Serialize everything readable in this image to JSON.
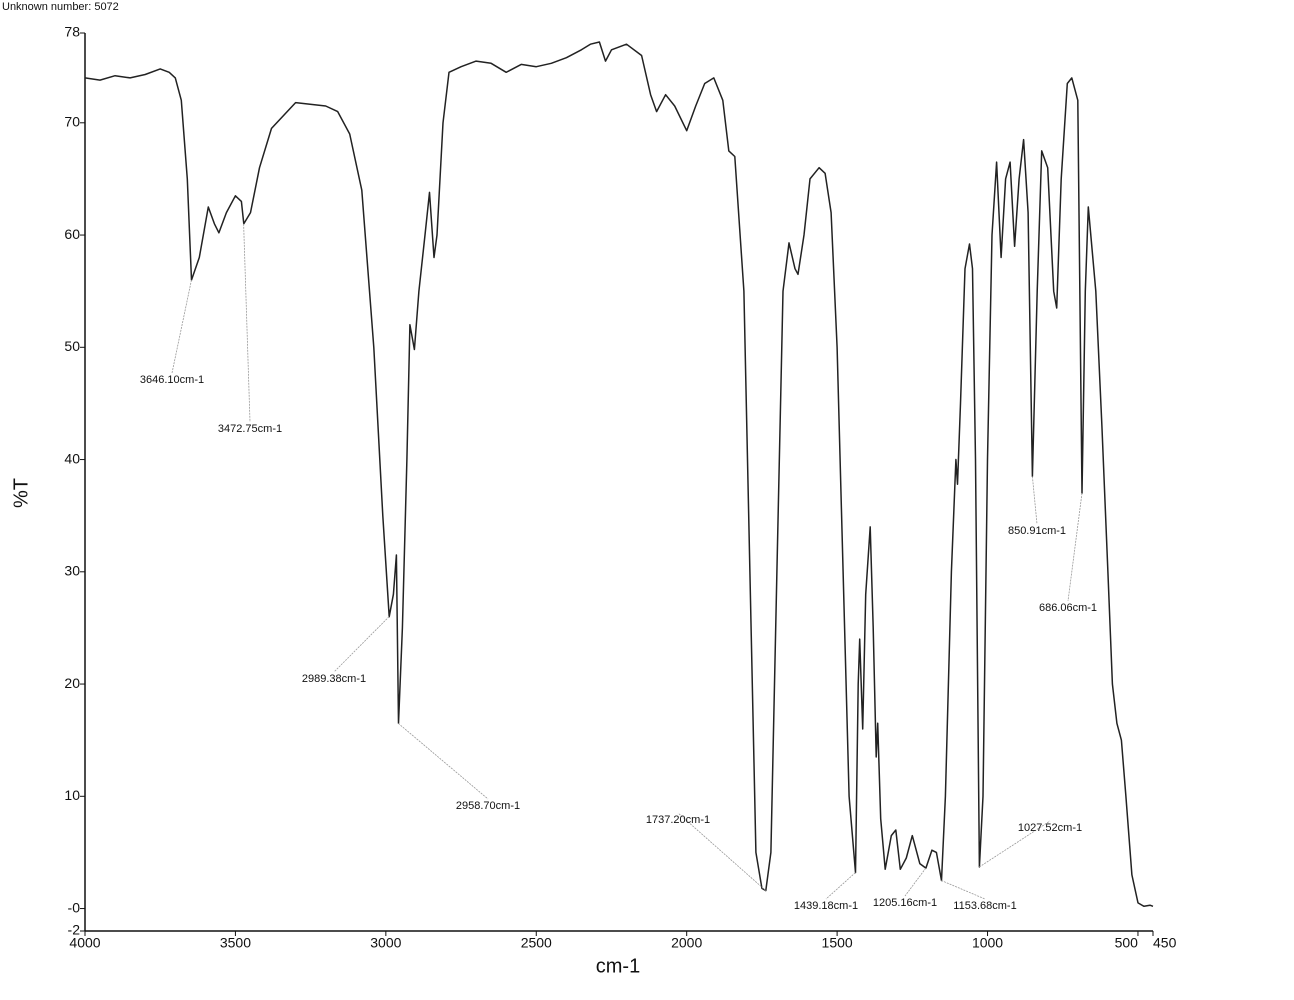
{
  "chart_data": {
    "type": "line",
    "title": "Unknown number: 5072",
    "xlabel": "cm-1",
    "ylabel": "%T",
    "xlim": [
      4000,
      450
    ],
    "ylim": [
      -2,
      78
    ],
    "xticks": [
      4000,
      3500,
      3000,
      2500,
      2000,
      1500,
      1000,
      500,
      450
    ],
    "yticks": [
      -2,
      {
        "value": 0,
        "label": "-0"
      },
      10,
      20,
      30,
      40,
      50,
      60,
      70,
      78
    ],
    "color": "#222222",
    "x": [
      4000,
      3950,
      3900,
      3850,
      3800,
      3750,
      3720,
      3700,
      3680,
      3660,
      3646,
      3620,
      3590,
      3570,
      3555,
      3530,
      3500,
      3480,
      3472,
      3450,
      3420,
      3380,
      3300,
      3200,
      3160,
      3120,
      3080,
      3040,
      3010,
      2989,
      2975,
      2965,
      2958,
      2945,
      2930,
      2920,
      2905,
      2890,
      2870,
      2855,
      2840,
      2830,
      2810,
      2790,
      2750,
      2700,
      2650,
      2600,
      2550,
      2500,
      2450,
      2400,
      2350,
      2320,
      2290,
      2270,
      2250,
      2200,
      2150,
      2120,
      2100,
      2070,
      2040,
      2000,
      1970,
      1940,
      1910,
      1880,
      1860,
      1840,
      1810,
      1790,
      1770,
      1750,
      1737,
      1720,
      1700,
      1680,
      1660,
      1640,
      1630,
      1610,
      1590,
      1560,
      1540,
      1520,
      1500,
      1480,
      1460,
      1439,
      1430,
      1425,
      1415,
      1405,
      1390,
      1380,
      1370,
      1365,
      1355,
      1340,
      1320,
      1305,
      1290,
      1270,
      1250,
      1225,
      1205,
      1185,
      1170,
      1153,
      1140,
      1120,
      1105,
      1100,
      1090,
      1075,
      1060,
      1050,
      1040,
      1027,
      1015,
      1000,
      985,
      970,
      955,
      940,
      925,
      910,
      895,
      880,
      865,
      851,
      835,
      820,
      800,
      780,
      770,
      755,
      735,
      720,
      700,
      686,
      675,
      665,
      640,
      620,
      600,
      585,
      570,
      555,
      540,
      520,
      500,
      480,
      460,
      450
    ],
    "values": [
      74.0,
      73.8,
      74.2,
      74.0,
      74.3,
      74.8,
      74.5,
      74.0,
      72,
      65,
      56,
      58,
      62.5,
      61,
      60.2,
      62,
      63.5,
      63,
      61,
      62,
      66,
      69.5,
      71.8,
      71.5,
      71,
      69,
      64,
      50,
      35,
      26,
      28,
      31.5,
      16.5,
      25,
      40,
      52,
      49.8,
      55,
      60,
      63.8,
      58,
      60,
      70,
      74.5,
      75,
      75.5,
      75.3,
      74.5,
      75.2,
      75.0,
      75.3,
      75.8,
      76.5,
      77,
      77.2,
      75.5,
      76.5,
      77,
      76,
      72.5,
      71,
      72.5,
      71.5,
      69.3,
      71.5,
      73.5,
      74,
      72,
      67.5,
      67,
      55,
      30,
      5,
      1.8,
      1.6,
      5,
      30,
      55,
      59.3,
      57,
      56.5,
      60,
      65,
      66,
      65.5,
      62,
      50,
      30,
      10,
      3.2,
      20,
      24,
      16,
      28,
      34,
      25,
      13.5,
      16.5,
      8,
      3.5,
      6.5,
      7,
      3.5,
      4.5,
      6.5,
      4,
      3.6,
      5.2,
      5,
      2.5,
      10,
      30,
      40,
      37.8,
      45,
      57,
      59.2,
      57,
      40,
      3.7,
      10,
      40,
      60,
      66.5,
      58,
      65,
      66.5,
      59,
      65,
      68.5,
      62,
      38.5,
      55,
      67.5,
      66,
      55,
      53.5,
      65,
      73.5,
      74,
      72,
      37,
      55,
      62.5,
      55,
      43,
      30,
      20,
      16.5,
      15,
      10,
      3,
      0.5,
      0.2,
      0.3,
      0.2
    ],
    "annotations": [
      {
        "text": "3646.10cm-1",
        "x": 3646.1,
        "y": 56
      },
      {
        "text": "3472.75cm-1",
        "x": 3472.75,
        "y": 61
      },
      {
        "text": "2989.38cm-1",
        "x": 2989.38,
        "y": 26
      },
      {
        "text": "2958.70cm-1",
        "x": 2958.7,
        "y": 16.5
      },
      {
        "text": "1737.20cm-1",
        "x": 1737.2,
        "y": 1.6
      },
      {
        "text": "1439.18cm-1",
        "x": 1439.18,
        "y": 3.2
      },
      {
        "text": "1205.16cm-1",
        "x": 1205.16,
        "y": 3.6
      },
      {
        "text": "1153.68cm-1",
        "x": 1153.68,
        "y": 2.5
      },
      {
        "text": "1027.52cm-1",
        "x": 1027.52,
        "y": 3.7
      },
      {
        "text": "850.91cm-1",
        "x": 850.91,
        "y": 38.5
      },
      {
        "text": "686.06cm-1",
        "x": 686.06,
        "y": 37
      }
    ]
  }
}
